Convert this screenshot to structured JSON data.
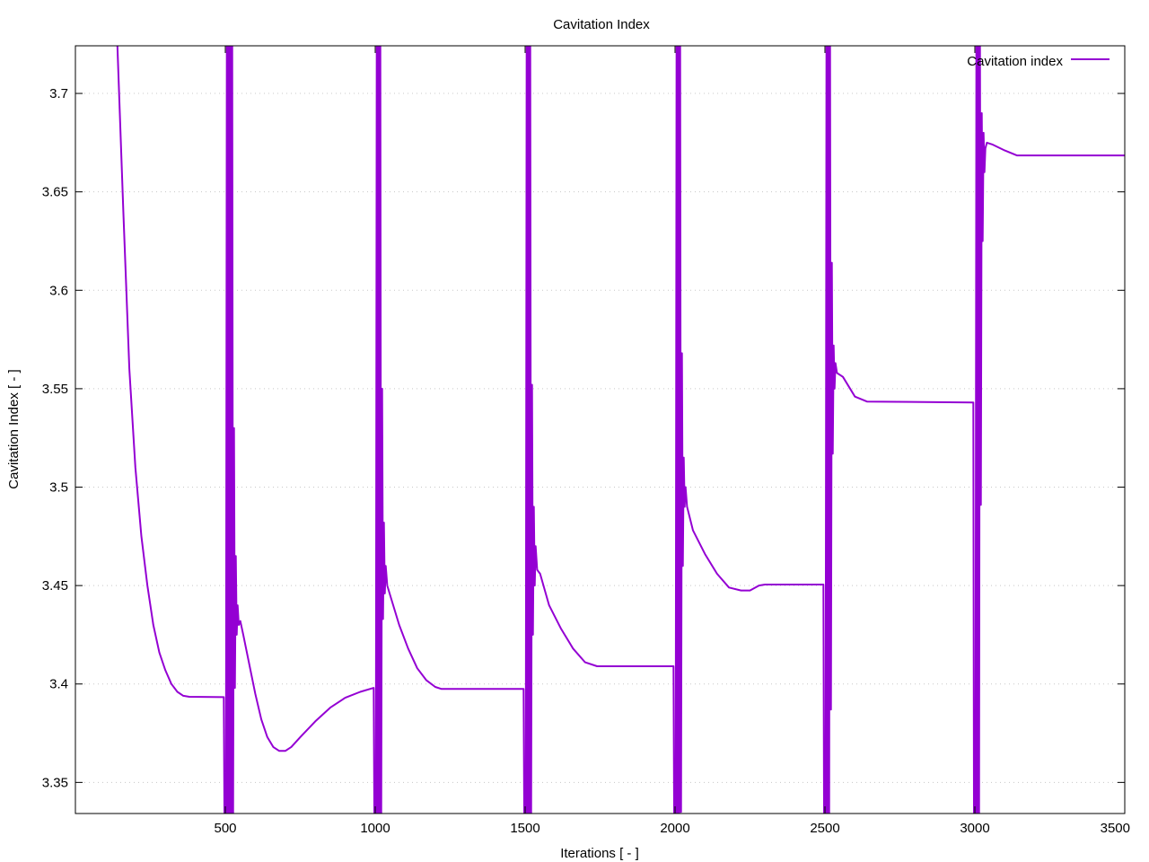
{
  "chart_data": {
    "type": "line",
    "title": "Cavitation Index",
    "xlabel": "Iterations [ - ]",
    "ylabel": "Cavitation Index [ - ]",
    "xlim": [
      0,
      3500
    ],
    "ylim": [
      3.3342,
      3.7242
    ],
    "x_ticks": [
      500,
      1000,
      1500,
      2000,
      2500,
      3000,
      3500
    ],
    "y_ticks": [
      3.35,
      3.4,
      3.45,
      3.5,
      3.55,
      3.6,
      3.65,
      3.7
    ],
    "x_tick_labels": [
      "500",
      "1000",
      "1500",
      "2000",
      "2500",
      "3000",
      "3500"
    ],
    "y_tick_labels": [
      "3.35",
      "3.4",
      "3.45",
      "3.5",
      "3.55",
      "3.6",
      "3.65",
      "3.7"
    ],
    "grid": "horizontal dotted",
    "legend_position": "top-right",
    "series": [
      {
        "name": "Cavitation index",
        "color": "#9400d3",
        "points": [
          [
            140,
            3.724
          ],
          [
            160,
            3.64
          ],
          [
            180,
            3.56
          ],
          [
            200,
            3.51
          ],
          [
            220,
            3.475
          ],
          [
            240,
            3.45
          ],
          [
            260,
            3.43
          ],
          [
            280,
            3.416
          ],
          [
            300,
            3.407
          ],
          [
            320,
            3.4
          ],
          [
            340,
            3.396
          ],
          [
            360,
            3.394
          ],
          [
            380,
            3.3935
          ],
          [
            495,
            3.3933
          ],
          [
            497,
            3.3342
          ],
          [
            502,
            3.3342
          ],
          [
            505,
            3.724
          ],
          [
            508,
            3.3342
          ],
          [
            511,
            3.724
          ],
          [
            514,
            3.3342
          ],
          [
            517,
            3.724
          ],
          [
            520,
            3.3342
          ],
          [
            523,
            3.724
          ],
          [
            526,
            3.3342
          ],
          [
            529,
            3.53
          ],
          [
            532,
            3.398
          ],
          [
            535,
            3.465
          ],
          [
            538,
            3.425
          ],
          [
            541,
            3.44
          ],
          [
            545,
            3.43
          ],
          [
            550,
            3.432
          ],
          [
            560,
            3.425
          ],
          [
            580,
            3.41
          ],
          [
            600,
            3.395
          ],
          [
            620,
            3.382
          ],
          [
            640,
            3.373
          ],
          [
            660,
            3.368
          ],
          [
            680,
            3.366
          ],
          [
            700,
            3.366
          ],
          [
            720,
            3.368
          ],
          [
            750,
            3.373
          ],
          [
            800,
            3.381
          ],
          [
            850,
            3.388
          ],
          [
            900,
            3.393
          ],
          [
            950,
            3.396
          ],
          [
            995,
            3.398
          ],
          [
            997,
            3.3342
          ],
          [
            1002,
            3.3342
          ],
          [
            1005,
            3.724
          ],
          [
            1008,
            3.3342
          ],
          [
            1011,
            3.724
          ],
          [
            1014,
            3.3342
          ],
          [
            1017,
            3.724
          ],
          [
            1020,
            3.3342
          ],
          [
            1023,
            3.55
          ],
          [
            1026,
            3.433
          ],
          [
            1029,
            3.482
          ],
          [
            1032,
            3.446
          ],
          [
            1035,
            3.46
          ],
          [
            1040,
            3.45
          ],
          [
            1050,
            3.445
          ],
          [
            1080,
            3.43
          ],
          [
            1110,
            3.418
          ],
          [
            1140,
            3.408
          ],
          [
            1170,
            3.402
          ],
          [
            1200,
            3.3985
          ],
          [
            1220,
            3.3975
          ],
          [
            1495,
            3.3975
          ],
          [
            1497,
            3.3342
          ],
          [
            1502,
            3.3342
          ],
          [
            1505,
            3.724
          ],
          [
            1508,
            3.3342
          ],
          [
            1511,
            3.724
          ],
          [
            1514,
            3.3342
          ],
          [
            1517,
            3.724
          ],
          [
            1520,
            3.3342
          ],
          [
            1523,
            3.552
          ],
          [
            1526,
            3.425
          ],
          [
            1529,
            3.49
          ],
          [
            1532,
            3.45
          ],
          [
            1535,
            3.47
          ],
          [
            1540,
            3.458
          ],
          [
            1550,
            3.456
          ],
          [
            1580,
            3.44
          ],
          [
            1620,
            3.428
          ],
          [
            1660,
            3.418
          ],
          [
            1700,
            3.411
          ],
          [
            1740,
            3.409
          ],
          [
            1995,
            3.409
          ],
          [
            1997,
            3.3342
          ],
          [
            2002,
            3.3342
          ],
          [
            2005,
            3.724
          ],
          [
            2008,
            3.3342
          ],
          [
            2011,
            3.724
          ],
          [
            2014,
            3.3342
          ],
          [
            2017,
            3.724
          ],
          [
            2020,
            3.335
          ],
          [
            2023,
            3.568
          ],
          [
            2026,
            3.46
          ],
          [
            2029,
            3.515
          ],
          [
            2032,
            3.49
          ],
          [
            2035,
            3.5
          ],
          [
            2040,
            3.49
          ],
          [
            2060,
            3.478
          ],
          [
            2100,
            3.466
          ],
          [
            2140,
            3.456
          ],
          [
            2180,
            3.449
          ],
          [
            2220,
            3.4475
          ],
          [
            2250,
            3.4475
          ],
          [
            2280,
            3.45
          ],
          [
            2300,
            3.4505
          ],
          [
            2495,
            3.4505
          ],
          [
            2497,
            3.3342
          ],
          [
            2502,
            3.3342
          ],
          [
            2505,
            3.724
          ],
          [
            2508,
            3.3342
          ],
          [
            2511,
            3.724
          ],
          [
            2514,
            3.3342
          ],
          [
            2517,
            3.724
          ],
          [
            2520,
            3.387
          ],
          [
            2523,
            3.614
          ],
          [
            2526,
            3.517
          ],
          [
            2529,
            3.572
          ],
          [
            2532,
            3.55
          ],
          [
            2535,
            3.563
          ],
          [
            2540,
            3.558
          ],
          [
            2560,
            3.556
          ],
          [
            2600,
            3.546
          ],
          [
            2640,
            3.5435
          ],
          [
            2995,
            3.543
          ],
          [
            2997,
            3.3342
          ],
          [
            3002,
            3.3342
          ],
          [
            3005,
            3.724
          ],
          [
            3008,
            3.3342
          ],
          [
            3011,
            3.724
          ],
          [
            3014,
            3.3342
          ],
          [
            3017,
            3.724
          ],
          [
            3020,
            3.491
          ],
          [
            3023,
            3.69
          ],
          [
            3026,
            3.625
          ],
          [
            3029,
            3.68
          ],
          [
            3032,
            3.66
          ],
          [
            3035,
            3.672
          ],
          [
            3040,
            3.675
          ],
          [
            3060,
            3.674
          ],
          [
            3100,
            3.671
          ],
          [
            3140,
            3.6685
          ],
          [
            3500,
            3.6685
          ]
        ]
      }
    ]
  }
}
